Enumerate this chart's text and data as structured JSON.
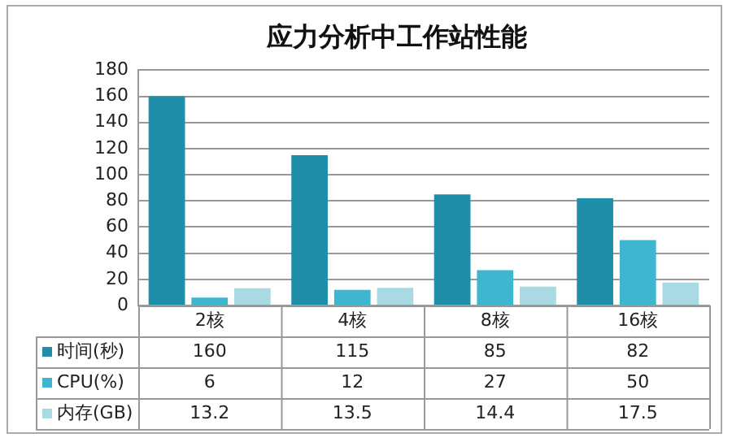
{
  "chart_data": {
    "type": "bar",
    "title": "应力分析中工作站性能",
    "categories": [
      "2核",
      "4核",
      "8核",
      "16核"
    ],
    "series": [
      {
        "name": "时间(秒)",
        "color": "#1f8ea8",
        "values": [
          160,
          115,
          85,
          82
        ]
      },
      {
        "name": "CPU(%)",
        "color": "#3fb6d0",
        "values": [
          6,
          12,
          27,
          50
        ]
      },
      {
        "name": "内存(GB)",
        "color": "#a9d9e2",
        "values": [
          13.2,
          13.5,
          14.4,
          17.5
        ]
      }
    ],
    "ylim": [
      0,
      180
    ],
    "yticks": [
      0,
      20,
      40,
      60,
      80,
      100,
      120,
      140,
      160,
      180
    ],
    "grid": "y",
    "legend": "bottom",
    "data_labels": true
  }
}
